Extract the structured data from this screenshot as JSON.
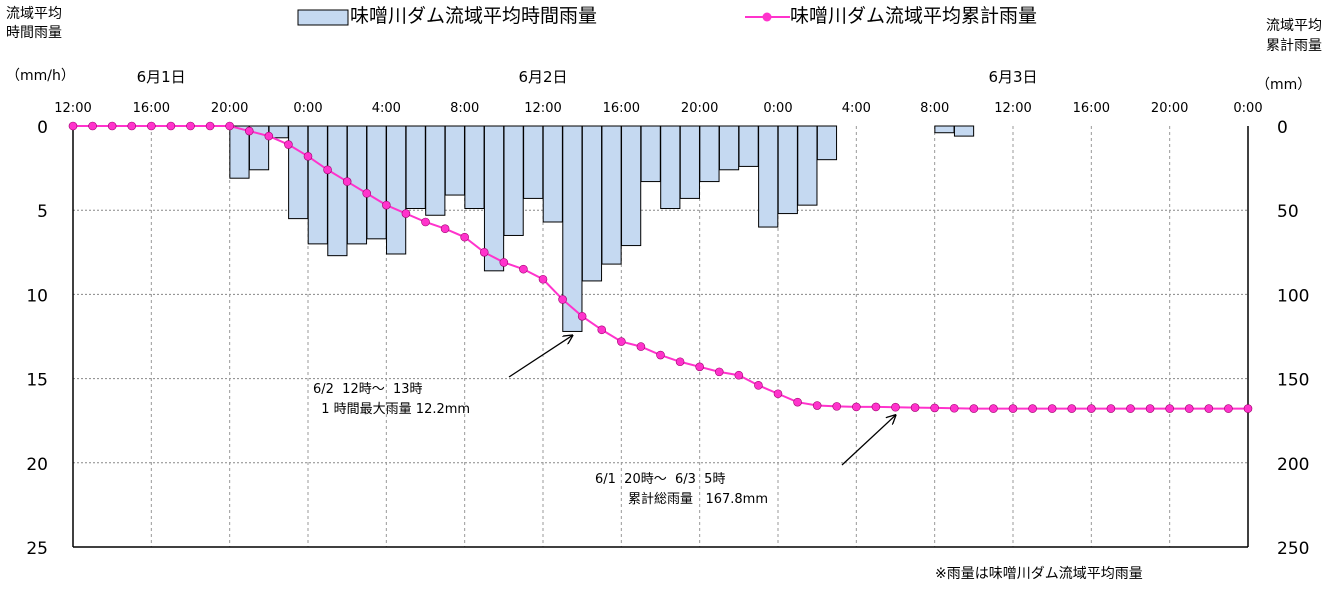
{
  "chart_data": {
    "type": "bar",
    "left_axis": {
      "title_lines": [
        "流域平均",
        "時間雨量",
        "（mm/h）"
      ],
      "ticks": [
        "0",
        "5",
        "10",
        "15",
        "20",
        "25"
      ],
      "ylim": [
        0,
        25
      ],
      "inverted": true
    },
    "right_axis": {
      "title_lines": [
        "流域平均",
        "累計雨量",
        "（mm）"
      ],
      "ticks": [
        "0",
        "50",
        "100",
        "150",
        "200",
        "250"
      ],
      "ylim": [
        0,
        250
      ],
      "inverted": true
    },
    "x_hour_range": [
      0,
      60
    ],
    "x_time_ticks": [
      "12:00",
      "16:00",
      "20:00",
      "0:00",
      "4:00",
      "8:00",
      "12:00",
      "16:00",
      "20:00",
      "0:00",
      "4:00",
      "8:00",
      "12:00",
      "16:00",
      "20:00",
      "0:00"
    ],
    "date_labels": [
      {
        "text": "6月1日",
        "hour": 4.5
      },
      {
        "text": "6月2日",
        "hour": 24
      },
      {
        "text": "6月3日",
        "hour": 48
      }
    ],
    "legend": {
      "bar": "味噌川ダム流域平均時間雨量",
      "line": "味噌川ダム流域平均累計雨量"
    },
    "bar_color": "#c5d9f1",
    "line_color": "#ff33cc",
    "series": [
      {
        "name": "味噌川ダム流域平均時間雨量",
        "type": "bar",
        "axis": "left",
        "hours": [
          8,
          9,
          10,
          11,
          12,
          13,
          14,
          15,
          16,
          17,
          18,
          19,
          20,
          21,
          22,
          23,
          24,
          25,
          26,
          27,
          28,
          29,
          30,
          31,
          32,
          33,
          34,
          35,
          36,
          37,
          38,
          39,
          40,
          41,
          42,
          43,
          44,
          45,
          46
        ],
        "values": [
          3.1,
          2.6,
          0.7,
          5.5,
          7.0,
          7.7,
          7.0,
          6.7,
          7.6,
          4.9,
          5.3,
          4.1,
          4.9,
          8.6,
          6.5,
          4.3,
          5.7,
          12.2,
          9.2,
          8.2,
          7.1,
          3.3,
          4.9,
          4.3,
          3.3,
          2.6,
          2.4,
          6.0,
          5.2,
          4.7,
          2.0,
          0,
          0,
          0,
          0,
          0,
          0.4,
          0.6,
          0
        ]
      },
      {
        "name": "味噌川ダム流域平均累計雨量",
        "type": "line",
        "axis": "right",
        "hours": [
          0,
          1,
          2,
          3,
          4,
          5,
          6,
          7,
          8,
          9,
          10,
          11,
          12,
          13,
          14,
          15,
          16,
          17,
          18,
          19,
          20,
          21,
          22,
          23,
          24,
          25,
          26,
          27,
          28,
          29,
          30,
          31,
          32,
          33,
          34,
          35,
          36,
          37,
          38,
          39,
          40,
          41,
          42,
          43,
          44,
          45,
          46,
          47,
          48,
          49,
          50,
          51,
          52,
          53,
          54,
          55,
          56,
          57,
          58,
          59,
          60
        ],
        "values": [
          0,
          0,
          0,
          0,
          0,
          0,
          0,
          0,
          0,
          3,
          6,
          11,
          18,
          26,
          33,
          40,
          47,
          52,
          57,
          61,
          66,
          75,
          81,
          85,
          91,
          103,
          113,
          121,
          128,
          131,
          136,
          140,
          143,
          146,
          148,
          154,
          159,
          164,
          166,
          166.5,
          166.8,
          166.8,
          167,
          167.2,
          167.4,
          167.6,
          167.8,
          167.8,
          167.8,
          167.8,
          167.8,
          167.8,
          167.8,
          167.8,
          167.8,
          167.8,
          167.8,
          167.8,
          167.8,
          167.8,
          167.8
        ]
      }
    ],
    "annotations": [
      {
        "lines": [
          "6/2  12時～  13時",
          "  1 時間最大雨量 12.2mm"
        ]
      },
      {
        "lines": [
          "6/1  20時～  6/3  5時",
          "        累計総雨量   167.8mm"
        ]
      }
    ],
    "note": "※雨量は味噌川ダム流域平均雨量"
  }
}
